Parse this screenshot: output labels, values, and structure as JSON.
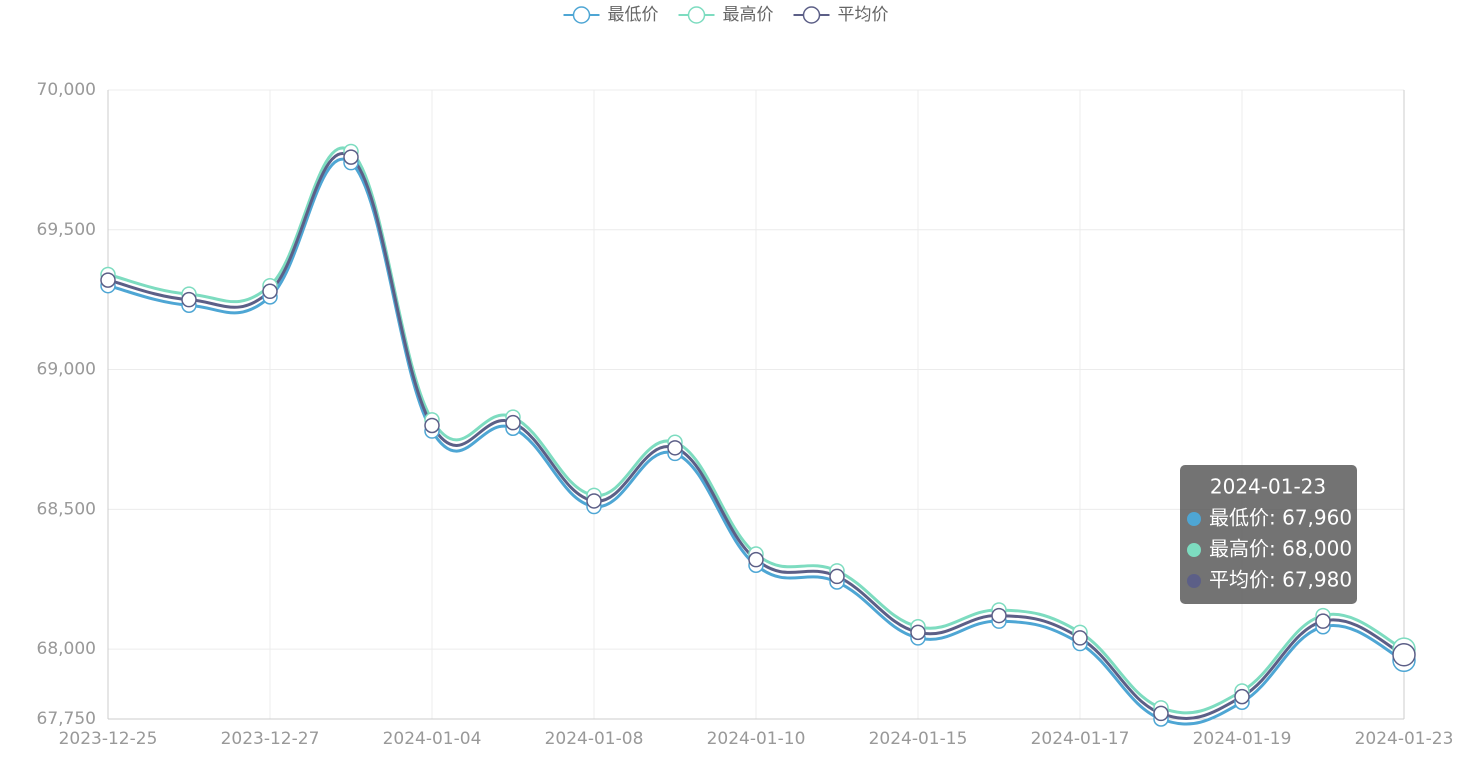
{
  "chart_data": {
    "type": "line",
    "categories": [
      "2023-12-25",
      null,
      "2023-12-27",
      null,
      "2024-01-04",
      null,
      "2024-01-08",
      null,
      "2024-01-10",
      null,
      "2024-01-15",
      null,
      "2024-01-17",
      null,
      "2024-01-19",
      null,
      "2024-01-23"
    ],
    "series": [
      {
        "name": "最低价",
        "color": "#4ea6d4",
        "values": [
          69300,
          69230,
          69260,
          69740,
          68780,
          68790,
          68510,
          68700,
          68300,
          68240,
          68040,
          68100,
          68020,
          67750,
          67810,
          68080,
          67960
        ]
      },
      {
        "name": "最高价",
        "color": "#7ddcc0",
        "values": [
          69340,
          69270,
          69300,
          69780,
          68820,
          68830,
          68550,
          68740,
          68340,
          68280,
          68080,
          68140,
          68060,
          67790,
          67850,
          68120,
          68000
        ]
      },
      {
        "name": "平均价",
        "color": "#5c5f87",
        "values": [
          69320,
          69250,
          69280,
          69760,
          68800,
          68810,
          68530,
          68720,
          68320,
          68260,
          68060,
          68120,
          68040,
          67770,
          67830,
          68100,
          67980
        ]
      }
    ],
    "ylim": [
      67750,
      70000
    ],
    "yticks": [
      {
        "value": 67750,
        "label": "67,750"
      },
      {
        "value": 68000,
        "label": "68,000"
      },
      {
        "value": 68500,
        "label": "68,500"
      },
      {
        "value": 69000,
        "label": "69,000"
      },
      {
        "value": 69500,
        "label": "69,500"
      },
      {
        "value": 70000,
        "label": "70,000"
      }
    ],
    "grid": true,
    "legend": "top",
    "tooltip": {
      "title": "2024-01-23",
      "items": [
        "最低价: 67,960",
        "最高价: 68,000",
        "平均价: 67,980"
      ]
    }
  }
}
